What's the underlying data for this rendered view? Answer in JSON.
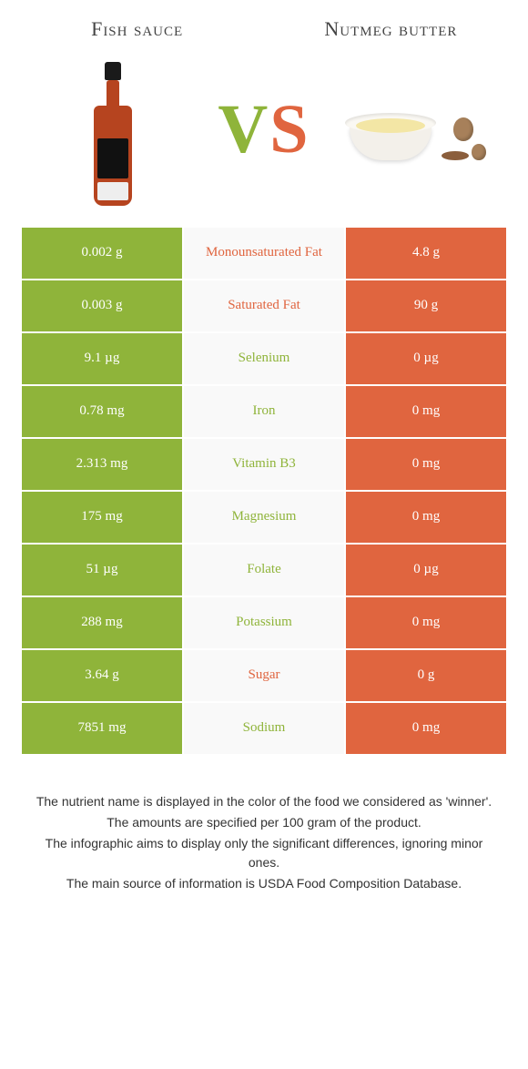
{
  "colors": {
    "left": "#8fb43a",
    "right": "#e0653f",
    "row_bg": "#f9f9f9",
    "border": "#ffffff"
  },
  "title_left": "Fish sauce",
  "title_right": "Nutmeg butter",
  "vs_v": "V",
  "vs_s": "S",
  "rows": [
    {
      "left": "0.002 g",
      "name": "Monounsaturated Fat",
      "right": "4.8 g",
      "winner": "right"
    },
    {
      "left": "0.003 g",
      "name": "Saturated Fat",
      "right": "90 g",
      "winner": "right"
    },
    {
      "left": "9.1 µg",
      "name": "Selenium",
      "right": "0 µg",
      "winner": "left"
    },
    {
      "left": "0.78 mg",
      "name": "Iron",
      "right": "0 mg",
      "winner": "left"
    },
    {
      "left": "2.313 mg",
      "name": "Vitamin B3",
      "right": "0 mg",
      "winner": "left"
    },
    {
      "left": "175 mg",
      "name": "Magnesium",
      "right": "0 mg",
      "winner": "left"
    },
    {
      "left": "51 µg",
      "name": "Folate",
      "right": "0 µg",
      "winner": "left"
    },
    {
      "left": "288 mg",
      "name": "Potassium",
      "right": "0 mg",
      "winner": "left"
    },
    {
      "left": "3.64 g",
      "name": "Sugar",
      "right": "0 g",
      "winner": "right"
    },
    {
      "left": "7851 mg",
      "name": "Sodium",
      "right": "0 mg",
      "winner": "left"
    }
  ],
  "notes": [
    "The nutrient name is displayed in the color of the food we considered as 'winner'.",
    "The amounts are specified per 100 gram of the product.",
    "The infographic aims to display only the significant differences, ignoring minor ones.",
    "The main source of information is USDA Food Composition Database."
  ]
}
